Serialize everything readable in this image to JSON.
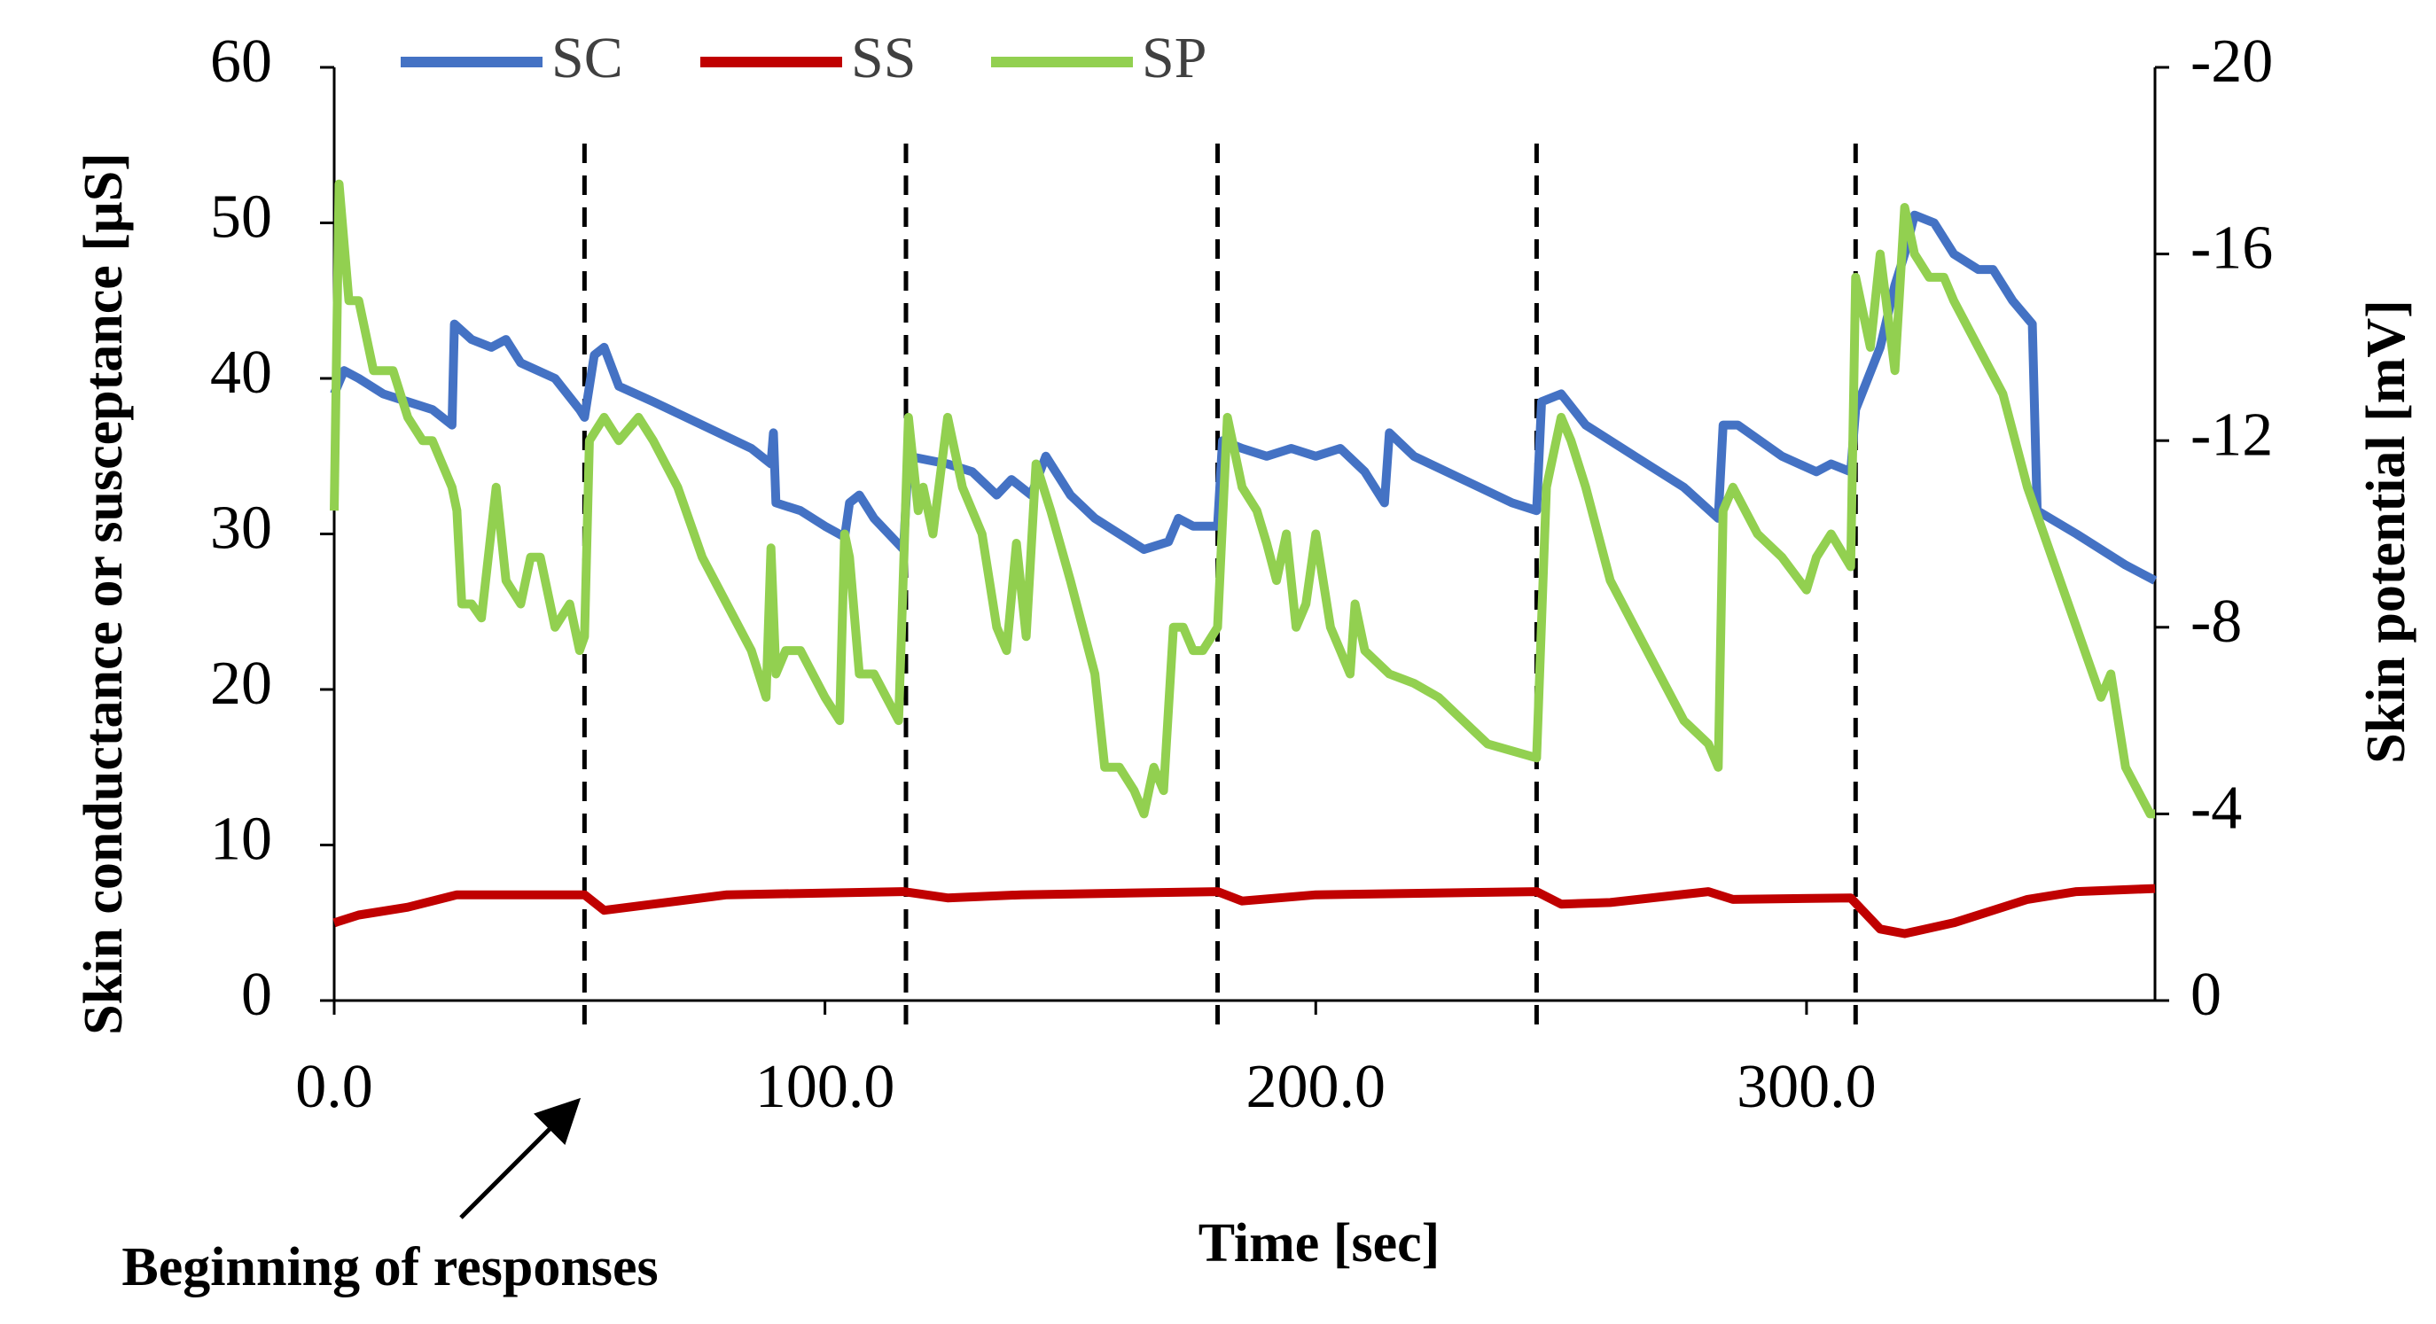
{
  "chart_data": {
    "type": "line",
    "xlabel": "Time [sec]",
    "ylabel": "Skin conductance or susceptance [µS]",
    "y2label": "Skin potential [mV]",
    "annotation": "Beginning of responses",
    "response_onsets": [
      51,
      116.5,
      180,
      245,
      310
    ],
    "xlim": [
      0,
      371
    ],
    "xticks": [
      {
        "value": 0,
        "label": "0.0"
      },
      {
        "value": 100,
        "label": "100.0"
      },
      {
        "value": 200,
        "label": "200.0"
      },
      {
        "value": 300,
        "label": "300.0"
      }
    ],
    "ylim": [
      0,
      60
    ],
    "yticks": [
      0,
      10,
      20,
      30,
      40,
      50,
      60
    ],
    "y2lim": [
      0,
      -20
    ],
    "y2ticks": [
      0,
      -4,
      -8,
      -12,
      -16,
      -20
    ],
    "legend": "top",
    "series": [
      {
        "name": "SC",
        "color": "#4472c4",
        "x": [
          0,
          2,
          5,
          10,
          15,
          20,
          24,
          24.5,
          28,
          32,
          35,
          38,
          45,
          50,
          51,
          53,
          55,
          58,
          65,
          75,
          85,
          89,
          89.5,
          90,
          95,
          100,
          104,
          105,
          107,
          110,
          116,
          117,
          125,
          130,
          135,
          138,
          142,
          145,
          150,
          155,
          160,
          165,
          170,
          172,
          175,
          180,
          181,
          185,
          190,
          195,
          200,
          205,
          210,
          214,
          215,
          220,
          230,
          240,
          245,
          246,
          250,
          255,
          265,
          275,
          282,
          283,
          286,
          295,
          302,
          305,
          309,
          310,
          315,
          318,
          320,
          322,
          326,
          330,
          335,
          338,
          342,
          346,
          347,
          355,
          365,
          371
        ],
        "values": [
          39,
          40.5,
          40,
          39,
          38.5,
          38,
          37,
          43.5,
          42.5,
          42,
          42.5,
          41,
          40,
          38,
          37.5,
          41.5,
          42,
          39.5,
          38.5,
          37,
          35.5,
          34.5,
          36.5,
          32,
          31.5,
          30.5,
          29.8,
          32,
          32.5,
          31,
          29,
          35,
          34.5,
          34,
          32.5,
          33.5,
          32.5,
          35,
          32.5,
          31,
          30,
          29,
          29.5,
          31,
          30.5,
          30.5,
          36,
          35.5,
          35,
          35.5,
          35,
          35.5,
          34,
          32,
          36.5,
          35,
          33.5,
          32,
          31.5,
          38.5,
          39,
          37,
          35,
          33,
          31,
          37,
          37,
          35,
          34,
          34.5,
          34,
          38,
          42,
          46,
          48,
          50.5,
          50,
          48,
          47,
          47,
          45,
          43.5,
          31.5,
          30,
          28,
          27
        ]
      },
      {
        "name": "SS",
        "color": "#c00000",
        "x": [
          0,
          5,
          15,
          25,
          50,
          51,
          55,
          65,
          80,
          116,
          125,
          140,
          180,
          185,
          200,
          245,
          250,
          260,
          280,
          285,
          309,
          315,
          320,
          330,
          345,
          355,
          371
        ],
        "values": [
          5,
          5.5,
          6,
          6.8,
          6.8,
          6.8,
          5.8,
          6.2,
          6.8,
          7,
          6.6,
          6.8,
          7,
          6.4,
          6.8,
          7,
          6.2,
          6.3,
          7,
          6.5,
          6.6,
          4.6,
          4.3,
          5,
          6.5,
          7,
          7.2
        ]
      },
      {
        "name": "SP",
        "color": "#92d050",
        "axis": "y2",
        "x": [
          0,
          1,
          3,
          5,
          8,
          12,
          15,
          18,
          20,
          24,
          25,
          26,
          28,
          30,
          33,
          35,
          38,
          40,
          42,
          45,
          48,
          50,
          51,
          52,
          55,
          58,
          62,
          65,
          70,
          75,
          80,
          85,
          88,
          89,
          90,
          92,
          95,
          100,
          103,
          104,
          105,
          107,
          110,
          115,
          117,
          119,
          120,
          122,
          125,
          128,
          132,
          135,
          137,
          139,
          141,
          143,
          146,
          150,
          155,
          157,
          160,
          163,
          165,
          167,
          169,
          171,
          173,
          175,
          177,
          180,
          182,
          185,
          188,
          190,
          192,
          194,
          196,
          198,
          200,
          203,
          205,
          207,
          208,
          210,
          215,
          220,
          225,
          230,
          235,
          245,
          247,
          250,
          252,
          255,
          260,
          265,
          270,
          275,
          280,
          282,
          283,
          285,
          290,
          295,
          300,
          302,
          305,
          309,
          310,
          313,
          315,
          318,
          320,
          322,
          325,
          328,
          330,
          335,
          340,
          345,
          350,
          355,
          360,
          362,
          365,
          370,
          371
        ],
        "values": [
          -10.5,
          -17.5,
          -15,
          -15,
          -13.5,
          -13.5,
          -12.5,
          -12,
          -12,
          -11,
          -10.5,
          -8.5,
          -8.5,
          -8.2,
          -11,
          -9,
          -8.5,
          -9.5,
          -9.5,
          -8,
          -8.5,
          -7.5,
          -7.8,
          -12,
          -12.5,
          -12,
          -12.5,
          -12,
          -11,
          -9.5,
          -8.5,
          -7.5,
          -6.5,
          -9.7,
          -7,
          -7.5,
          -7.5,
          -6.5,
          -6,
          -10,
          -9.5,
          -7,
          -7,
          -6,
          -12.5,
          -10.5,
          -11,
          -10,
          -12.5,
          -11,
          -10,
          -8,
          -7.5,
          -9.8,
          -7.8,
          -11.5,
          -10.5,
          -9,
          -7,
          -5,
          -5,
          -4.5,
          -4,
          -5,
          -4.5,
          -8,
          -8,
          -7.5,
          -7.5,
          -8,
          -12.5,
          -11,
          -10.5,
          -9.8,
          -9,
          -10,
          -8,
          -8.5,
          -10,
          -8,
          -7.5,
          -7,
          -8.5,
          -7.5,
          -7,
          -6.8,
          -6.5,
          -6,
          -5.5,
          -5.2,
          -11,
          -12.5,
          -12,
          -11,
          -9,
          -8,
          -7,
          -6,
          -5.5,
          -5,
          -10.5,
          -11,
          -10,
          -9.5,
          -8.8,
          -9.5,
          -10,
          -9.3,
          -15.5,
          -14,
          -16,
          -13.5,
          -17,
          -16,
          -15.5,
          -15.5,
          -15,
          -14,
          -13,
          -11,
          -9.5,
          -8,
          -6.5,
          -7,
          -5,
          -4,
          -4
        ]
      }
    ]
  }
}
